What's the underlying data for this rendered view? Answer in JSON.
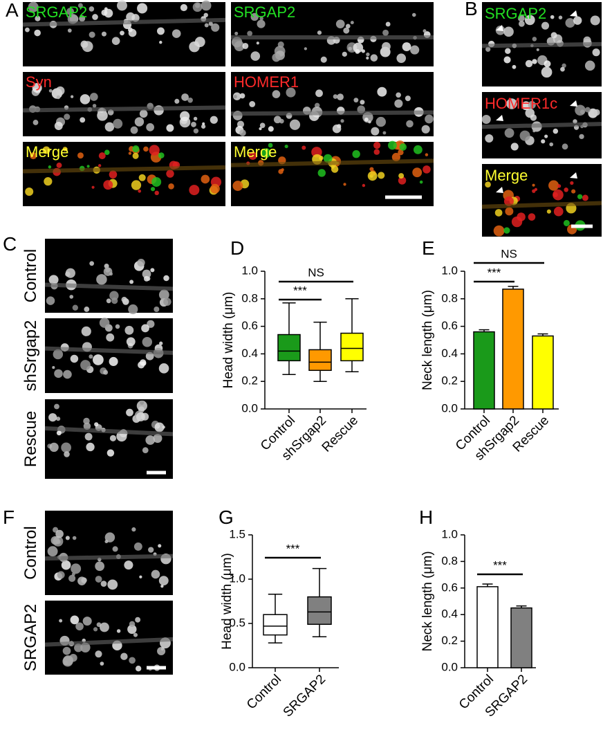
{
  "panel_labels": [
    "A",
    "B",
    "C",
    "D",
    "E",
    "F",
    "G",
    "H"
  ],
  "image_labels": {
    "A": [
      "SRGAP2",
      "SRGAP2",
      "Syn",
      "HOMER1",
      "Merge",
      "Merge"
    ],
    "B": [
      "SRGAP2",
      "HOMER1c",
      "Merge"
    ],
    "C": [
      "Control",
      "shSrgap2",
      "Rescue"
    ],
    "F": [
      "Control",
      "SRGAP2"
    ]
  },
  "chart_data": [
    {
      "type": "box",
      "ylabel": "Head width (μm)",
      "categories": [
        "Control",
        "shSrgap2",
        "Rescue"
      ],
      "colors": [
        "#1a9a1a",
        "#ff9900",
        "#ffff00"
      ],
      "boxes": [
        {
          "min": 0.25,
          "q1": 0.35,
          "median": 0.42,
          "q3": 0.54,
          "max": 0.77
        },
        {
          "min": 0.2,
          "q1": 0.28,
          "median": 0.34,
          "q3": 0.43,
          "max": 0.63
        },
        {
          "min": 0.27,
          "q1": 0.35,
          "median": 0.44,
          "q3": 0.55,
          "max": 0.8
        }
      ],
      "ylim": [
        0,
        1
      ],
      "yticks": [
        {
          "value": 0,
          "label": "0.0"
        },
        0.2,
        0.4,
        0.6,
        0.8,
        {
          "value": 1,
          "label": "1.0"
        }
      ],
      "annotations": [
        "NS",
        "***"
      ]
    },
    {
      "type": "bar",
      "ylabel": "Neck length (μm)",
      "categories": [
        "Control",
        "shSrgap2",
        "Rescue"
      ],
      "colors": [
        "#1a9a1a",
        "#ff9900",
        "#ffff00"
      ],
      "values": [
        0.56,
        0.87,
        0.53
      ],
      "errors": [
        0.015,
        0.02,
        0.015
      ],
      "ylim": [
        0,
        1
      ],
      "yticks": [
        {
          "value": 0,
          "label": "0.0"
        },
        0.2,
        0.4,
        0.6,
        0.8,
        {
          "value": 1,
          "label": "1.0"
        }
      ],
      "annotations": [
        "NS",
        "***"
      ]
    },
    {
      "type": "box",
      "ylabel": "Head width (μm)",
      "categories": [
        "Control",
        "SRGAP2"
      ],
      "colors": [
        "#ffffff",
        "#808080"
      ],
      "boxes": [
        {
          "min": 0.28,
          "q1": 0.37,
          "median": 0.47,
          "q3": 0.6,
          "max": 0.83
        },
        {
          "min": 0.35,
          "q1": 0.49,
          "median": 0.63,
          "q3": 0.8,
          "max": 1.12
        }
      ],
      "ylim": [
        0,
        1.5
      ],
      "yticks": [
        {
          "value": 0,
          "label": "0.0"
        },
        0.5,
        {
          "value": 1,
          "label": "1.0"
        },
        1.5
      ],
      "annotations": [
        "***"
      ]
    },
    {
      "type": "bar",
      "ylabel": "Neck length (μm)",
      "categories": [
        "Control",
        "SRGAP2"
      ],
      "colors": [
        "#ffffff",
        "#808080"
      ],
      "values": [
        0.61,
        0.45
      ],
      "errors": [
        0.02,
        0.015
      ],
      "ylim": [
        0,
        1
      ],
      "yticks": [
        {
          "value": 0,
          "label": "0.0"
        },
        0.2,
        0.4,
        0.6,
        0.8,
        {
          "value": 1,
          "label": "1.0"
        }
      ],
      "annotations": [
        "***"
      ]
    }
  ]
}
